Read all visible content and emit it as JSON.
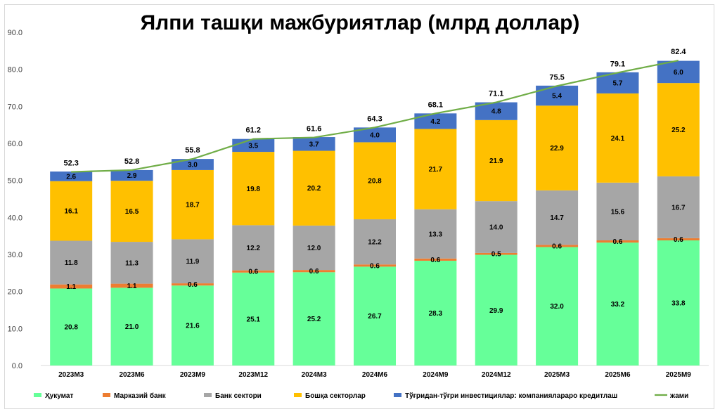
{
  "chart_data": {
    "type": "bar",
    "stacked": true,
    "title": "Ялпи ташқи  мажбуриятлар (млрд доллар)",
    "xlabel": "",
    "ylabel": "",
    "ylim": [
      0,
      90
    ],
    "yticks": [
      "0.0",
      "10.0",
      "20.0",
      "30.0",
      "40.0",
      "50.0",
      "60.0",
      "70.0",
      "80.0",
      "90.0"
    ],
    "grid": false,
    "legend_position": "bottom",
    "categories": [
      "2023M3",
      "2023M6",
      "2023M9",
      "2023M12",
      "2024M3",
      "2024M6",
      "2024M9",
      "2024M12",
      "2025M3",
      "2025M6",
      "2025M9"
    ],
    "series": [
      {
        "name": "Ҳукумат",
        "color": "#66ff99",
        "label_color": "#000000",
        "values": [
          20.8,
          21.0,
          21.6,
          25.1,
          25.2,
          26.7,
          28.3,
          29.9,
          32.0,
          33.2,
          33.8
        ],
        "labels": [
          "20.8",
          "21.0",
          "21.6",
          "25.1",
          "25.2",
          "26.7",
          "28.3",
          "29.9",
          "32.0",
          "33.2",
          "33.8"
        ]
      },
      {
        "name": "Марказий банк",
        "color": "#ed7d31",
        "label_color": "#000000",
        "values": [
          1.1,
          1.1,
          0.6,
          0.6,
          0.6,
          0.6,
          0.6,
          0.5,
          0.6,
          0.6,
          0.6
        ],
        "labels": [
          "1.1",
          "1.1",
          "0.6",
          "0.6",
          "0.6",
          "0.6",
          "0.6",
          "0.5",
          "0.6",
          "0.6",
          "0.6"
        ]
      },
      {
        "name": "Банк сектори",
        "color": "#a6a6a6",
        "label_color": "#000000",
        "values": [
          11.8,
          11.3,
          11.9,
          12.2,
          12.0,
          12.2,
          13.3,
          14.0,
          14.7,
          15.6,
          16.7
        ],
        "labels": [
          "11.8",
          "11.3",
          "11.9",
          "12.2",
          "12.0",
          "12.2",
          "13.3",
          "14.0",
          "14.7",
          "15.6",
          "16.7"
        ]
      },
      {
        "name": "Бошқа секторлар",
        "color": "#ffc000",
        "label_color": "#000000",
        "values": [
          16.1,
          16.5,
          18.7,
          19.8,
          20.2,
          20.8,
          21.7,
          21.9,
          22.9,
          24.1,
          25.2
        ],
        "labels": [
          "16.1",
          "16.5",
          "18.7",
          "19.8",
          "20.2",
          "20.8",
          "21.7",
          "21.9",
          "22.9",
          "24.1",
          "25.2"
        ]
      },
      {
        "name": "Тўғридан-тўғри инвестициялар: компанияларaро кредитлаш",
        "color": "#4472c4",
        "label_color": "#ffffff",
        "values": [
          2.6,
          2.9,
          3.0,
          3.5,
          3.7,
          4.0,
          4.2,
          4.8,
          5.4,
          5.7,
          6.0
        ],
        "labels": [
          "2.6",
          "2.9",
          "3.0",
          "3.5",
          "3.7",
          "4.0",
          "4.2",
          "4.8",
          "5.4",
          "5.7",
          "6.0"
        ]
      }
    ],
    "total_line": {
      "name": "жами",
      "color": "#70ad47",
      "values": [
        52.3,
        52.8,
        55.8,
        61.2,
        61.6,
        64.3,
        68.1,
        71.1,
        75.5,
        79.1,
        82.4
      ],
      "labels": [
        "52.3",
        "52.8",
        "55.8",
        "61.2",
        "61.6",
        "64.3",
        "68.1",
        "71.1",
        "75.5",
        "79.1",
        "82.4"
      ]
    }
  }
}
